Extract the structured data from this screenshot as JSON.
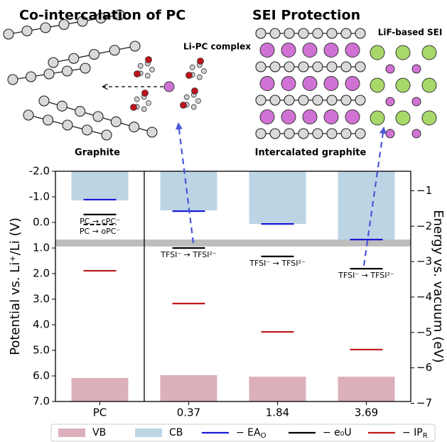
{
  "schematics": {
    "left": {
      "title": "Co-intercalation of PC",
      "complex_label": "Li-PC complex",
      "caption": "Graphite"
    },
    "right": {
      "title": "SEI Protection",
      "sei_label": "LiF-based SEI",
      "caption": "Intercalated graphite"
    }
  },
  "chart_data": {
    "type": "bar",
    "ylabel": "Potential vs. Li⁺/Li (V)",
    "y2label": "Energy vs. vacuum (eV)",
    "categories": [
      "PC",
      "0.37",
      "1.84",
      "3.69"
    ],
    "ylim": [
      -2,
      7
    ],
    "invert_y": true,
    "yticks": [
      {
        "value": -2,
        "label": "-2.0"
      },
      {
        "value": -1,
        "label": "-1.0"
      },
      {
        "value": 0,
        "label": "0.0"
      },
      {
        "value": 1,
        "label": "1.0"
      },
      {
        "value": 2,
        "label": "2.0"
      },
      {
        "value": 3,
        "label": "3.0"
      },
      {
        "value": 4,
        "label": "4.0"
      },
      {
        "value": 5,
        "label": "5.0"
      },
      {
        "value": 6,
        "label": "6.0"
      },
      {
        "value": 7,
        "label": "7.0"
      }
    ],
    "y2lim": [
      -0.45,
      -6.95
    ],
    "y2ticks": [
      {
        "value": -1,
        "label": "−1"
      },
      {
        "value": -2,
        "label": "−2"
      },
      {
        "value": -3,
        "label": "−3"
      },
      {
        "value": -4,
        "label": "−4"
      },
      {
        "value": -5,
        "label": "−5"
      },
      {
        "value": -6,
        "label": "−6"
      },
      {
        "value": -7,
        "label": "−7"
      }
    ],
    "series": [
      {
        "name": "VB",
        "kind": "bar",
        "anchor": "bottom",
        "color": "#dcb0bb",
        "values": [
          6.08,
          5.97,
          6.03,
          6.03
        ]
      },
      {
        "name": "CB",
        "kind": "bar",
        "anchor": "top",
        "color": "#bcd5e5",
        "values": [
          -0.86,
          -0.47,
          0.06,
          0.69
        ]
      },
      {
        "name": "− EA",
        "name_sub": "O",
        "kind": "level",
        "color": "#1a1ad8",
        "values": [
          -0.89,
          -0.44,
          0.06,
          0.67
        ]
      },
      {
        "name": "− e₀U",
        "kind": "level",
        "color": "#000000",
        "values": [
          -0.31,
          1.0,
          1.33,
          1.81
        ]
      },
      {
        "name": "− IP",
        "name_sub": "R",
        "kind": "level",
        "color": "#c0181c",
        "values": [
          1.89,
          3.17,
          4.28,
          4.97
        ]
      }
    ],
    "band": {
      "ylim": [
        0.67,
        0.94
      ],
      "color": "#bdbdbd"
    },
    "annotations": [
      {
        "text": "PC → cPC⁻",
        "x": "PC",
        "y": -0.31
      },
      {
        "text": "PC → oPC⁻",
        "x": "PC",
        "y": 0.08,
        "line": "dashed"
      },
      {
        "text": "TFSI⁻ → TFSI²⁻",
        "x": "0.37",
        "y": 1.0
      },
      {
        "text": "TFSI⁻ → TFSI²⁻",
        "x": "1.84",
        "y": 1.33
      },
      {
        "text": "TFSI⁻ → TFSI²⁻",
        "x": "3.69",
        "y": 1.81
      }
    ],
    "legend": "bottom"
  }
}
